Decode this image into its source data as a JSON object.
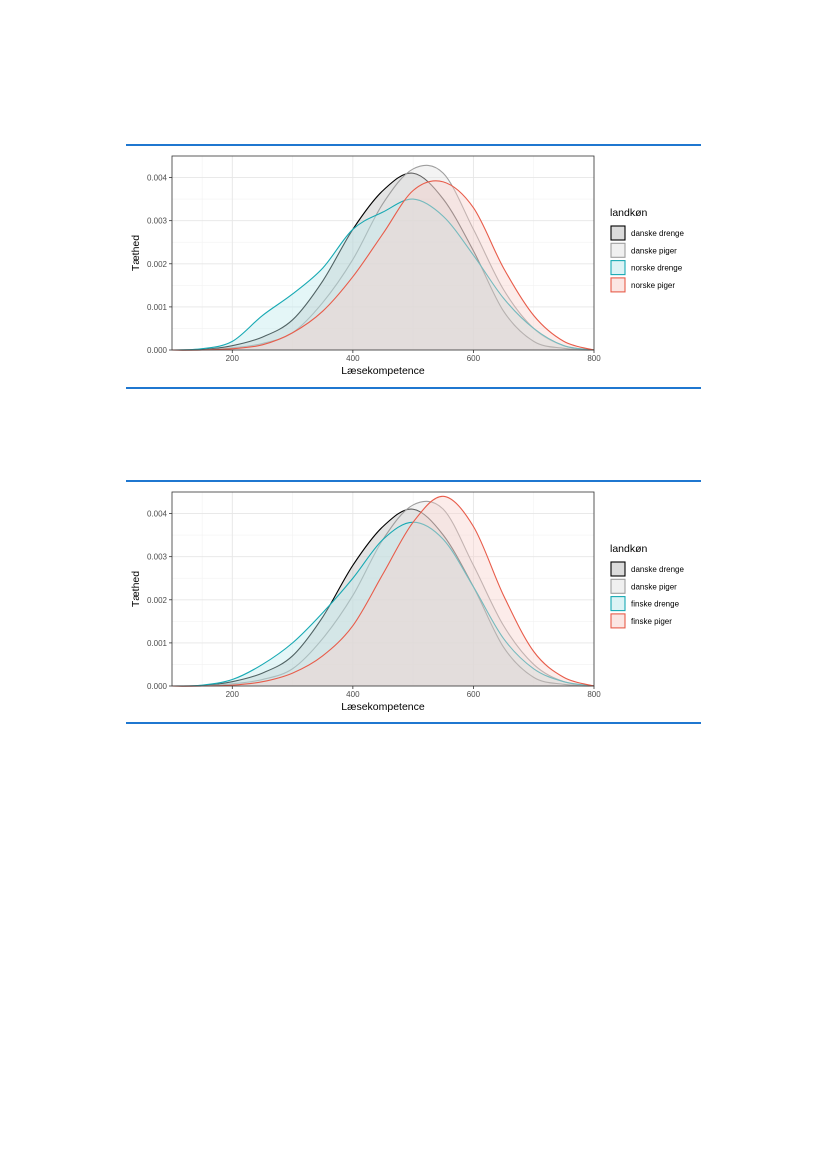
{
  "chart_data": [
    {
      "type": "area",
      "subtype": "density",
      "xlabel": "Læsekompetence",
      "ylabel": "Tæthed",
      "xlim": [
        100,
        800
      ],
      "ylim": [
        0,
        0.0045
      ],
      "xticks": [
        200,
        400,
        600,
        800
      ],
      "xtick_labels": [
        "200",
        "400",
        "600",
        "800"
      ],
      "yticks": [
        0,
        0.001,
        0.002,
        0.003,
        0.004
      ],
      "ytick_labels": [
        "0.000",
        "0.001",
        "0.002",
        "0.003",
        "0.004"
      ],
      "grid": true,
      "legend_title": "landkøn",
      "legend_position": "right",
      "x": [
        100,
        150,
        200,
        250,
        300,
        350,
        400,
        450,
        500,
        550,
        600,
        650,
        700,
        750,
        800
      ],
      "series": [
        {
          "name": "danske drenge",
          "color": "#000000",
          "fill": "#bdbdbd",
          "values": [
            0,
            1e-05,
            0.0001,
            0.0003,
            0.0007,
            0.0016,
            0.0028,
            0.0037,
            0.0041,
            0.0035,
            0.0023,
            0.0009,
            0.0002,
            4e-05,
            0
          ]
        },
        {
          "name": "danske piger",
          "color": "#9e9e9e",
          "fill": "#e3e3e3",
          "values": [
            0,
            0,
            5e-05,
            0.00015,
            0.0004,
            0.0011,
            0.0021,
            0.0034,
            0.0042,
            0.0041,
            0.0028,
            0.0014,
            0.0005,
            0.0001,
            0
          ]
        },
        {
          "name": "norske drenge",
          "color": "#17a9b3",
          "fill": "#bfe9ec",
          "values": [
            0,
            3e-05,
            0.0002,
            0.0008,
            0.0013,
            0.0019,
            0.0028,
            0.0032,
            0.0035,
            0.0031,
            0.0022,
            0.0012,
            0.0005,
            0.0001,
            0
          ]
        },
        {
          "name": "norske piger",
          "color": "#e85c4a",
          "fill": "#f7d2cc",
          "values": [
            0,
            0,
            3e-05,
            0.00012,
            0.0004,
            0.0009,
            0.0017,
            0.0027,
            0.0037,
            0.0039,
            0.0033,
            0.0019,
            0.0008,
            0.0002,
            0
          ]
        }
      ]
    },
    {
      "type": "area",
      "subtype": "density",
      "xlabel": "Læsekompetence",
      "ylabel": "Tæthed",
      "xlim": [
        100,
        800
      ],
      "ylim": [
        0,
        0.0045
      ],
      "xticks": [
        200,
        400,
        600,
        800
      ],
      "xtick_labels": [
        "200",
        "400",
        "600",
        "800"
      ],
      "yticks": [
        0,
        0.001,
        0.002,
        0.003,
        0.004
      ],
      "ytick_labels": [
        "0.000",
        "0.001",
        "0.002",
        "0.003",
        "0.004"
      ],
      "grid": true,
      "legend_title": "landkøn",
      "legend_position": "right",
      "x": [
        100,
        150,
        200,
        250,
        300,
        350,
        400,
        450,
        500,
        550,
        600,
        650,
        700,
        750,
        800
      ],
      "series": [
        {
          "name": "danske drenge",
          "color": "#000000",
          "fill": "#bdbdbd",
          "values": [
            0,
            1e-05,
            0.0001,
            0.0003,
            0.0007,
            0.0016,
            0.0028,
            0.0037,
            0.0041,
            0.0035,
            0.0023,
            0.0009,
            0.0002,
            4e-05,
            0
          ]
        },
        {
          "name": "danske piger",
          "color": "#9e9e9e",
          "fill": "#e3e3e3",
          "values": [
            0,
            0,
            5e-05,
            0.00015,
            0.0004,
            0.0011,
            0.0021,
            0.0034,
            0.0042,
            0.0041,
            0.0028,
            0.0014,
            0.0005,
            0.0001,
            0
          ]
        },
        {
          "name": "finske drenge",
          "color": "#17a9b3",
          "fill": "#bfe9ec",
          "values": [
            0,
            2e-05,
            0.00015,
            0.0005,
            0.001,
            0.0017,
            0.0025,
            0.0034,
            0.0038,
            0.0034,
            0.0023,
            0.0011,
            0.0004,
            0.0001,
            0
          ]
        },
        {
          "name": "finske piger",
          "color": "#e85c4a",
          "fill": "#f7d2cc",
          "values": [
            0,
            0,
            2e-05,
            0.0001,
            0.0003,
            0.0007,
            0.0014,
            0.0026,
            0.0038,
            0.0044,
            0.0037,
            0.0021,
            0.0008,
            0.0002,
            0
          ]
        }
      ]
    }
  ]
}
